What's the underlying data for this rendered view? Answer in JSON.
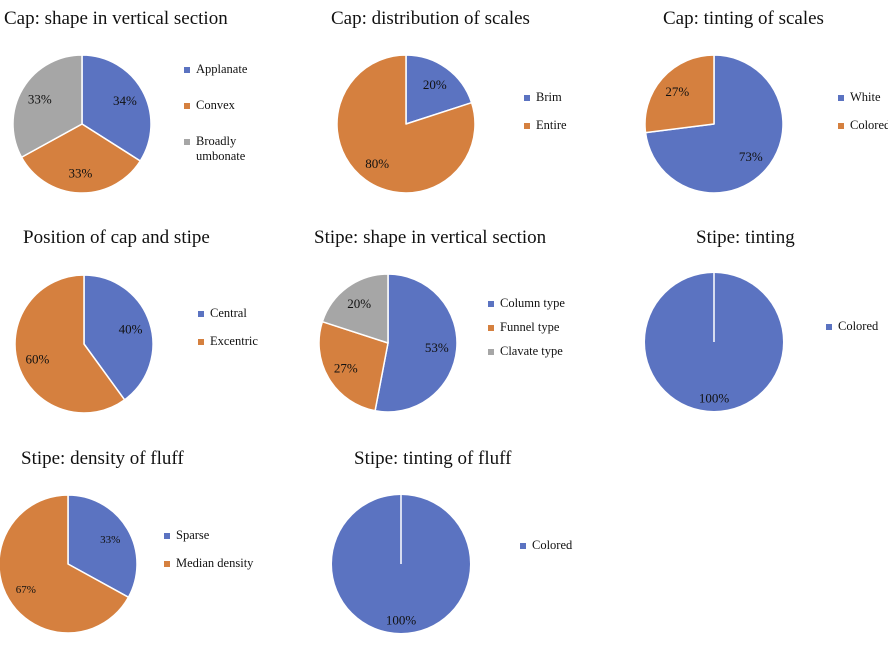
{
  "colors": {
    "blue": "#5b73c1",
    "orange": "#d5803f",
    "gray": "#a6a6a6",
    "separator": "#ffffff"
  },
  "chart_data": [
    {
      "type": "pie",
      "title": "Cap: shape in vertical section",
      "slices": [
        {
          "label": "Applanate",
          "value": 34,
          "display": "34%",
          "color": "#5b73c1"
        },
        {
          "label": "Convex",
          "value": 33,
          "display": "33%",
          "color": "#d5803f"
        },
        {
          "label": "Broadly umbonate",
          "value": 33,
          "display": "33%",
          "color": "#a6a6a6"
        }
      ],
      "legend_entries": [
        [
          "Applanate"
        ],
        [
          "Convex"
        ],
        [
          "Broadly",
          "umbonate"
        ]
      ],
      "legend_position": "right"
    },
    {
      "type": "pie",
      "title": "Cap: distribution of scales",
      "slices": [
        {
          "label": "Brim",
          "value": 20,
          "display": "20%",
          "color": "#5b73c1"
        },
        {
          "label": "Entire",
          "value": 80,
          "display": "80%",
          "color": "#d5803f"
        }
      ],
      "legend_entries": [
        [
          "Brim"
        ],
        [
          "Entire"
        ]
      ],
      "legend_position": "right"
    },
    {
      "type": "pie",
      "title": "Cap: tinting of scales",
      "slices": [
        {
          "label": "White",
          "value": 73,
          "display": "73%",
          "color": "#5b73c1"
        },
        {
          "label": "Colored",
          "value": 27,
          "display": "27%",
          "color": "#d5803f"
        }
      ],
      "legend_entries": [
        [
          "White"
        ],
        [
          "Colored"
        ]
      ],
      "legend_position": "right"
    },
    {
      "type": "pie",
      "title": "Position of cap and stipe",
      "slices": [
        {
          "label": "Central",
          "value": 40,
          "display": "40%",
          "color": "#5b73c1"
        },
        {
          "label": "Excentric",
          "value": 60,
          "display": "60%",
          "color": "#d5803f"
        }
      ],
      "legend_entries": [
        [
          "Central"
        ],
        [
          "Excentric"
        ]
      ],
      "legend_position": "right"
    },
    {
      "type": "pie",
      "title": "Stipe: shape in vertical section",
      "slices": [
        {
          "label": "Column type",
          "value": 53,
          "display": "53%",
          "color": "#5b73c1"
        },
        {
          "label": "Funnel type",
          "value": 27,
          "display": "27%",
          "color": "#d5803f"
        },
        {
          "label": "Clavate type",
          "value": 20,
          "display": "20%",
          "color": "#a6a6a6"
        }
      ],
      "legend_entries": [
        [
          "Column type"
        ],
        [
          "Funnel type"
        ],
        [
          "Clavate type"
        ]
      ],
      "legend_position": "right"
    },
    {
      "type": "pie",
      "title": "Stipe: tinting",
      "slices": [
        {
          "label": "Colored",
          "value": 100,
          "display": "100%",
          "color": "#5b73c1"
        }
      ],
      "legend_entries": [
        [
          "Colored"
        ]
      ],
      "legend_position": "right"
    },
    {
      "type": "pie",
      "title": "Stipe: density of fluff",
      "slices": [
        {
          "label": "Sparse",
          "value": 33,
          "display": "33%",
          "color": "#5b73c1"
        },
        {
          "label": "Median density",
          "value": 67,
          "display": "67%",
          "color": "#d5803f"
        }
      ],
      "legend_entries": [
        [
          "Sparse"
        ],
        [
          "Median density"
        ]
      ],
      "legend_position": "right"
    },
    {
      "type": "pie",
      "title": "Stipe: tinting of fluff",
      "slices": [
        {
          "label": "Colored",
          "value": 100,
          "display": "100%",
          "color": "#5b73c1"
        }
      ],
      "legend_entries": [
        [
          "Colored"
        ]
      ],
      "legend_position": "right"
    }
  ]
}
